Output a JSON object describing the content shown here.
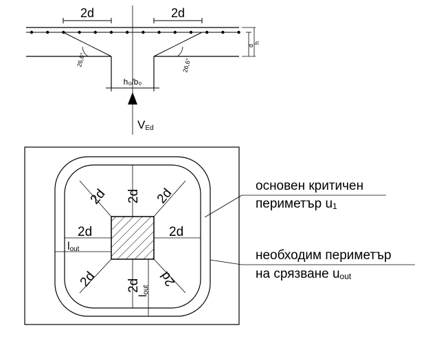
{
  "section": {
    "dim_left": "2d",
    "dim_right": "2d",
    "angle_left": "26,6°",
    "angle_right": "26,6°",
    "dim_side_d": "d",
    "dim_side_h": "h",
    "column_label": "h₀/b₀",
    "force_label_main": "V",
    "force_label_sub": "Ed"
  },
  "plan": {
    "dist_2d": "2d",
    "lout_main": "l",
    "lout_sub": "out"
  },
  "legend": {
    "u1_line1": "основен критичен",
    "u1_line2_prefix": "периметър u",
    "u1_line2_sub": "1",
    "uout_line1": "необходим периметър",
    "uout_line2_prefix": "на срязване u",
    "uout_line2_sub": "out"
  }
}
